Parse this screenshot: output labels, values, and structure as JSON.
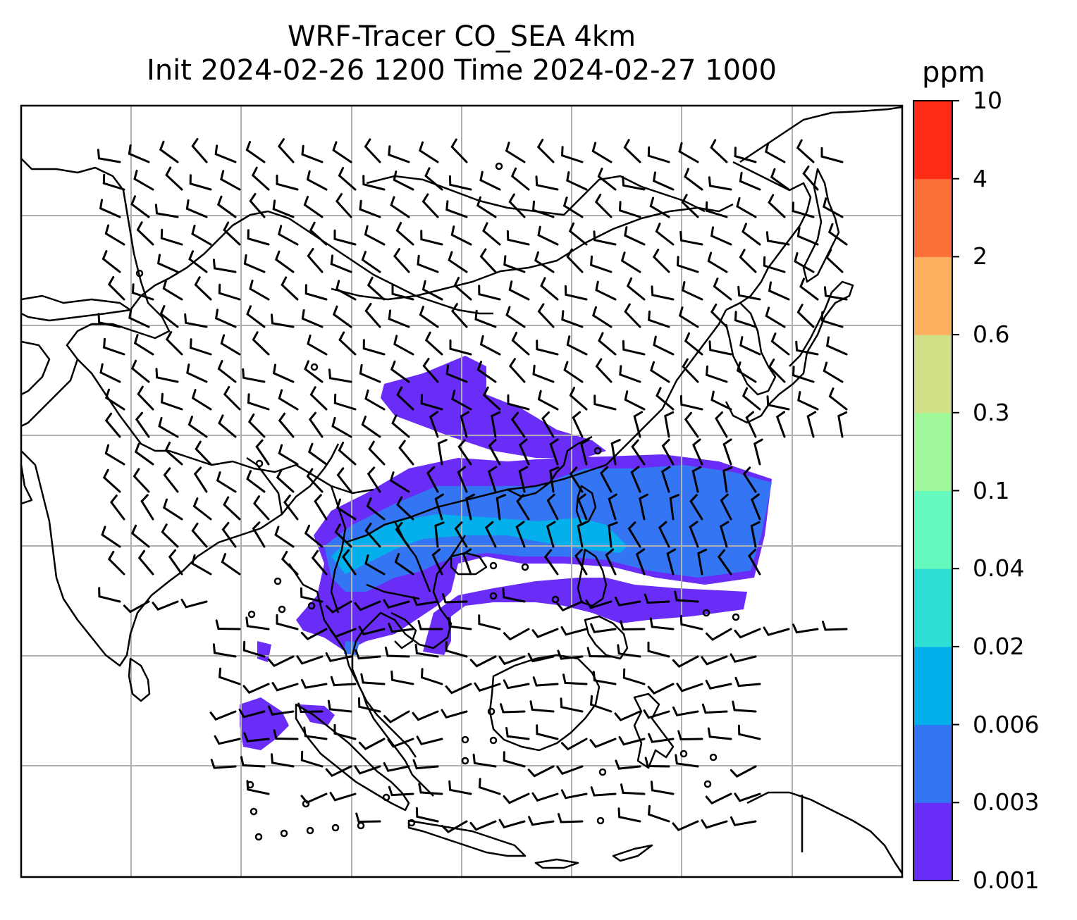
{
  "title": {
    "line1": "WRF-Tracer CO_SEA 4km",
    "line2": "Init 2024-02-26 1200 Time 2024-02-27 1000"
  },
  "colorbar": {
    "unit": "ppm",
    "ticks": [
      "0.001",
      "0.003",
      "0.006",
      "0.02",
      "0.04",
      "0.1",
      "0.3",
      "0.6",
      "2",
      "4",
      "10"
    ],
    "colors": [
      "#6a2cf7",
      "#3375f2",
      "#03b0ec",
      "#2fdfd6",
      "#66f9bd",
      "#9ff89a",
      "#cfe086",
      "#fdb05f",
      "#fe7039",
      "#fe2b15"
    ]
  },
  "map": {
    "grid": "on",
    "coastline_color": "#000000",
    "grid_color": "#b0b0b0",
    "plume_colors": {
      "low": "#6a2cf7",
      "mid": "#3375f2",
      "high": "#03b0ec"
    }
  }
}
